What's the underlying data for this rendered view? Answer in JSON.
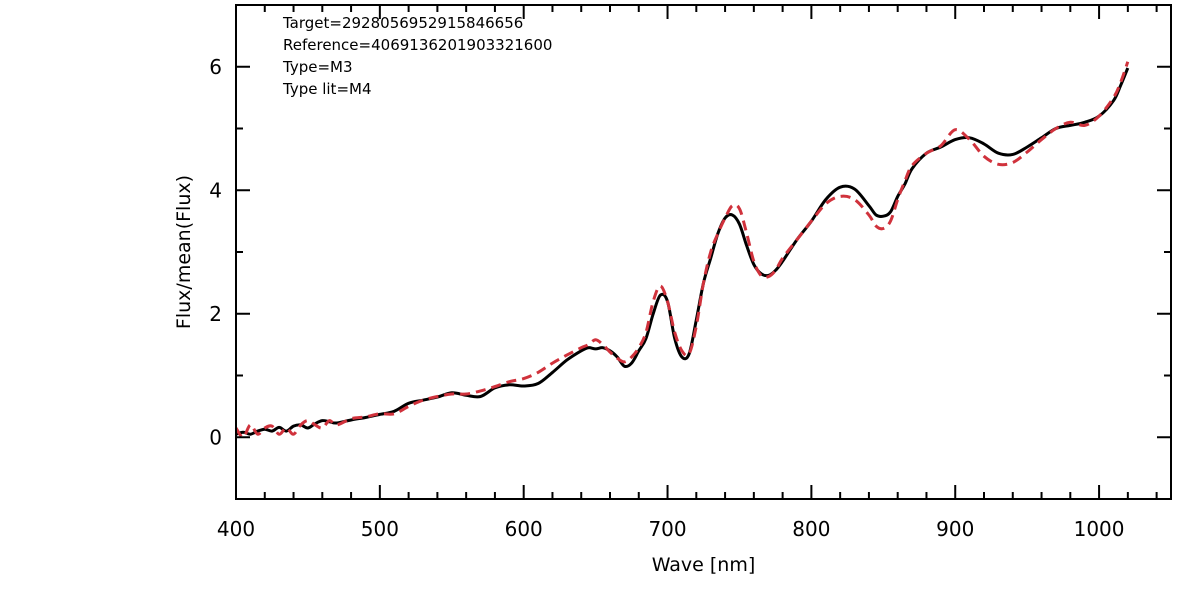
{
  "chart_data": {
    "type": "line",
    "xlabel": "Wave [nm]",
    "ylabel": "Flux/mean(Flux)",
    "xlim": [
      400,
      1050
    ],
    "ylim": [
      -1,
      7
    ],
    "x_ticks": [
      400,
      500,
      600,
      700,
      800,
      900,
      1000
    ],
    "y_ticks": [
      0,
      2,
      4,
      6
    ],
    "grid": false,
    "annotations": [
      "Target=2928056952915846656",
      "Reference=4069136201903321600",
      "Type=M3",
      "Type lit=M4"
    ],
    "series": [
      {
        "color": "#000000",
        "style": "solid",
        "x": [
          400,
          405,
          410,
          415,
          420,
          425,
          430,
          435,
          440,
          445,
          450,
          455,
          460,
          465,
          470,
          480,
          490,
          500,
          510,
          520,
          530,
          540,
          550,
          560,
          570,
          580,
          590,
          600,
          610,
          620,
          630,
          640,
          645,
          650,
          655,
          660,
          665,
          670,
          675,
          680,
          685,
          690,
          695,
          700,
          705,
          710,
          715,
          720,
          725,
          730,
          735,
          740,
          745,
          750,
          755,
          760,
          765,
          770,
          775,
          780,
          790,
          800,
          810,
          820,
          830,
          840,
          845,
          850,
          855,
          860,
          865,
          870,
          880,
          890,
          900,
          910,
          920,
          930,
          940,
          950,
          960,
          970,
          980,
          990,
          1000,
          1010,
          1015,
          1020
        ],
        "y": [
          0.05,
          0.08,
          0.05,
          0.1,
          0.13,
          0.1,
          0.16,
          0.1,
          0.18,
          0.2,
          0.15,
          0.22,
          0.27,
          0.25,
          0.23,
          0.28,
          0.32,
          0.37,
          0.42,
          0.55,
          0.6,
          0.65,
          0.72,
          0.68,
          0.66,
          0.8,
          0.85,
          0.83,
          0.87,
          1.05,
          1.25,
          1.4,
          1.45,
          1.43,
          1.45,
          1.4,
          1.3,
          1.15,
          1.2,
          1.4,
          1.6,
          2.0,
          2.3,
          2.2,
          1.6,
          1.3,
          1.35,
          1.9,
          2.5,
          2.9,
          3.3,
          3.55,
          3.6,
          3.45,
          3.1,
          2.8,
          2.65,
          2.62,
          2.7,
          2.85,
          3.2,
          3.5,
          3.85,
          4.05,
          4.02,
          3.75,
          3.6,
          3.58,
          3.65,
          3.9,
          4.1,
          4.35,
          4.6,
          4.7,
          4.82,
          4.85,
          4.75,
          4.6,
          4.58,
          4.7,
          4.85,
          5.0,
          5.05,
          5.1,
          5.2,
          5.45,
          5.7,
          5.98
        ]
      },
      {
        "color": "#d0323c",
        "style": "dashed",
        "x": [
          400,
          405,
          410,
          415,
          420,
          425,
          430,
          435,
          440,
          445,
          450,
          455,
          460,
          465,
          470,
          480,
          490,
          500,
          510,
          520,
          530,
          540,
          550,
          560,
          570,
          580,
          590,
          600,
          610,
          620,
          630,
          640,
          645,
          650,
          655,
          660,
          665,
          670,
          675,
          680,
          685,
          690,
          695,
          700,
          705,
          710,
          715,
          720,
          725,
          730,
          735,
          740,
          745,
          750,
          755,
          760,
          765,
          770,
          775,
          780,
          790,
          800,
          810,
          820,
          830,
          840,
          845,
          850,
          855,
          860,
          865,
          870,
          880,
          890,
          900,
          910,
          920,
          930,
          940,
          950,
          960,
          970,
          980,
          990,
          1000,
          1010,
          1015,
          1020
        ],
        "y": [
          0.15,
          0.0,
          0.2,
          0.05,
          0.15,
          0.18,
          0.05,
          0.15,
          0.05,
          0.2,
          0.27,
          0.2,
          0.15,
          0.27,
          0.2,
          0.3,
          0.33,
          0.38,
          0.38,
          0.5,
          0.6,
          0.66,
          0.7,
          0.7,
          0.75,
          0.82,
          0.9,
          0.95,
          1.05,
          1.2,
          1.33,
          1.45,
          1.5,
          1.58,
          1.5,
          1.38,
          1.28,
          1.22,
          1.3,
          1.45,
          1.7,
          2.2,
          2.45,
          2.2,
          1.7,
          1.4,
          1.35,
          1.8,
          2.5,
          3.0,
          3.3,
          3.55,
          3.75,
          3.7,
          3.3,
          2.85,
          2.62,
          2.6,
          2.7,
          2.9,
          3.2,
          3.5,
          3.78,
          3.9,
          3.85,
          3.6,
          3.42,
          3.38,
          3.5,
          3.85,
          4.15,
          4.4,
          4.6,
          4.72,
          4.98,
          4.82,
          4.55,
          4.42,
          4.45,
          4.62,
          4.82,
          5.0,
          5.1,
          5.05,
          5.2,
          5.5,
          5.75,
          6.08
        ]
      }
    ]
  }
}
